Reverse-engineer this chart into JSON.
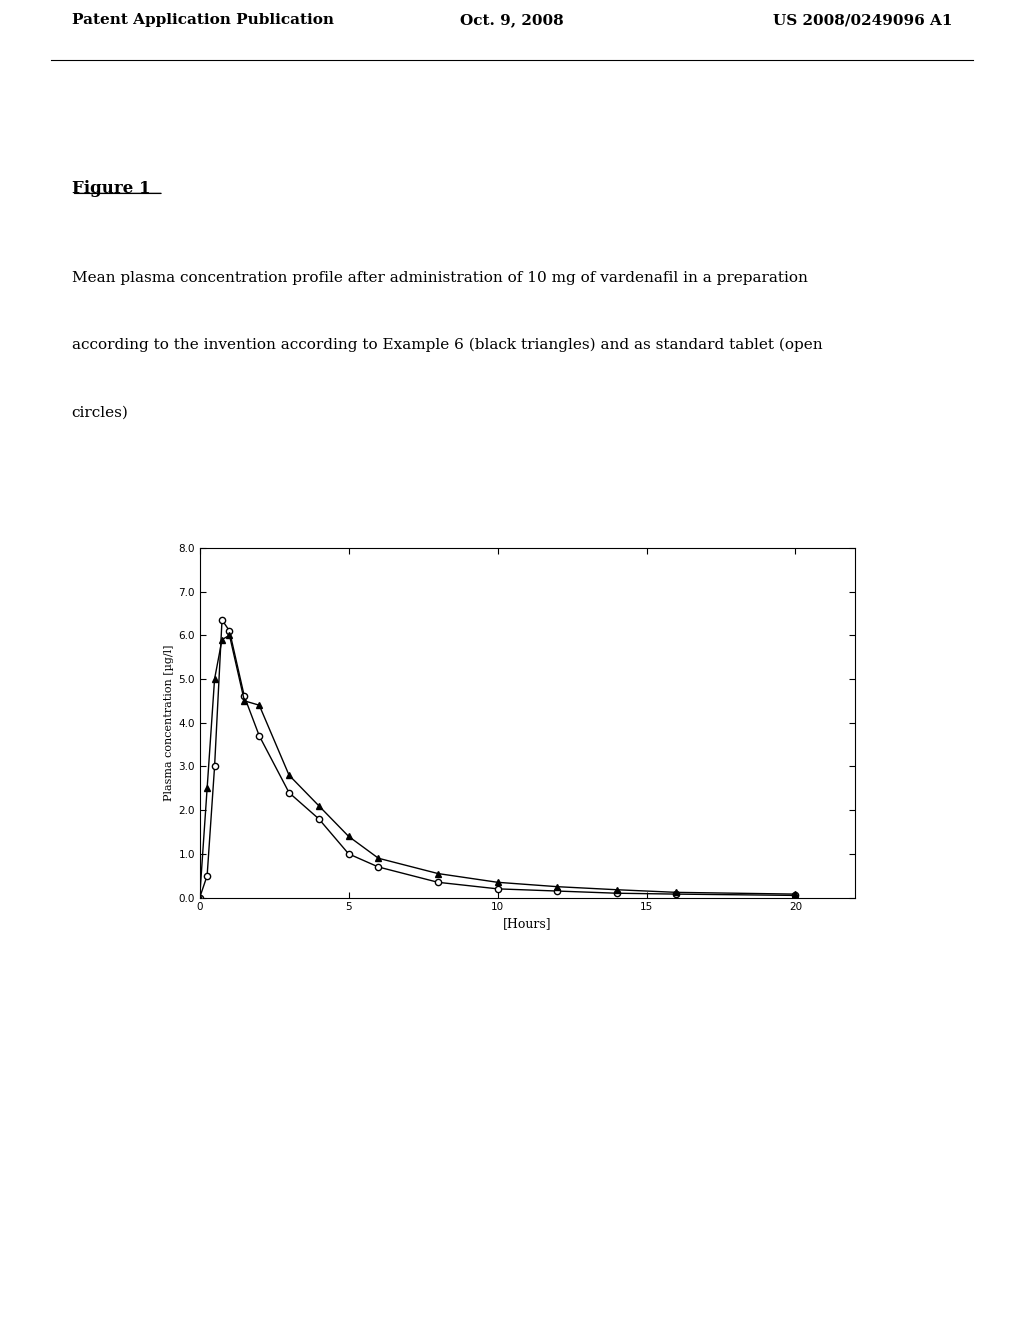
{
  "header_left": "Patent Application Publication",
  "header_center": "Oct. 9, 2008",
  "header_right": "US 2008/0249096 A1",
  "figure_label": "Figure 1",
  "caption_line1": "Mean plasma concentration profile after administration of 10 mg of vardenafil in a preparation",
  "caption_line2": "according to the invention according to Example 6 (black triangles) and as standard tablet (open",
  "caption_line3": "circles)",
  "ylabel": "Plasma concentration [µg/l]",
  "xlabel": "[Hours]",
  "ylim": [
    0.0,
    8.0
  ],
  "xlim": [
    0,
    22
  ],
  "yticks": [
    0.0,
    1.0,
    2.0,
    3.0,
    4.0,
    5.0,
    6.0,
    7.0,
    8.0
  ],
  "xticks": [
    0,
    5,
    10,
    15,
    20
  ],
  "circles_x": [
    0,
    0.25,
    0.5,
    0.75,
    1.0,
    1.5,
    2.0,
    3.0,
    4.0,
    5.0,
    6.0,
    8.0,
    10.0,
    12.0,
    14.0,
    16.0,
    20.0
  ],
  "circles_y": [
    0.0,
    0.5,
    3.0,
    6.35,
    6.1,
    4.6,
    3.7,
    2.4,
    1.8,
    1.0,
    0.7,
    0.35,
    0.2,
    0.15,
    0.1,
    0.08,
    0.05
  ],
  "triangles_x": [
    0,
    0.25,
    0.5,
    0.75,
    1.0,
    1.5,
    2.0,
    3.0,
    4.0,
    5.0,
    6.0,
    8.0,
    10.0,
    12.0,
    14.0,
    16.0,
    20.0
  ],
  "triangles_y": [
    0.0,
    2.5,
    5.0,
    5.9,
    6.0,
    4.5,
    4.4,
    2.8,
    2.1,
    1.4,
    0.9,
    0.55,
    0.35,
    0.25,
    0.18,
    0.12,
    0.08
  ],
  "line_color": "#000000",
  "bg_color": "#ffffff",
  "text_color": "#000000"
}
